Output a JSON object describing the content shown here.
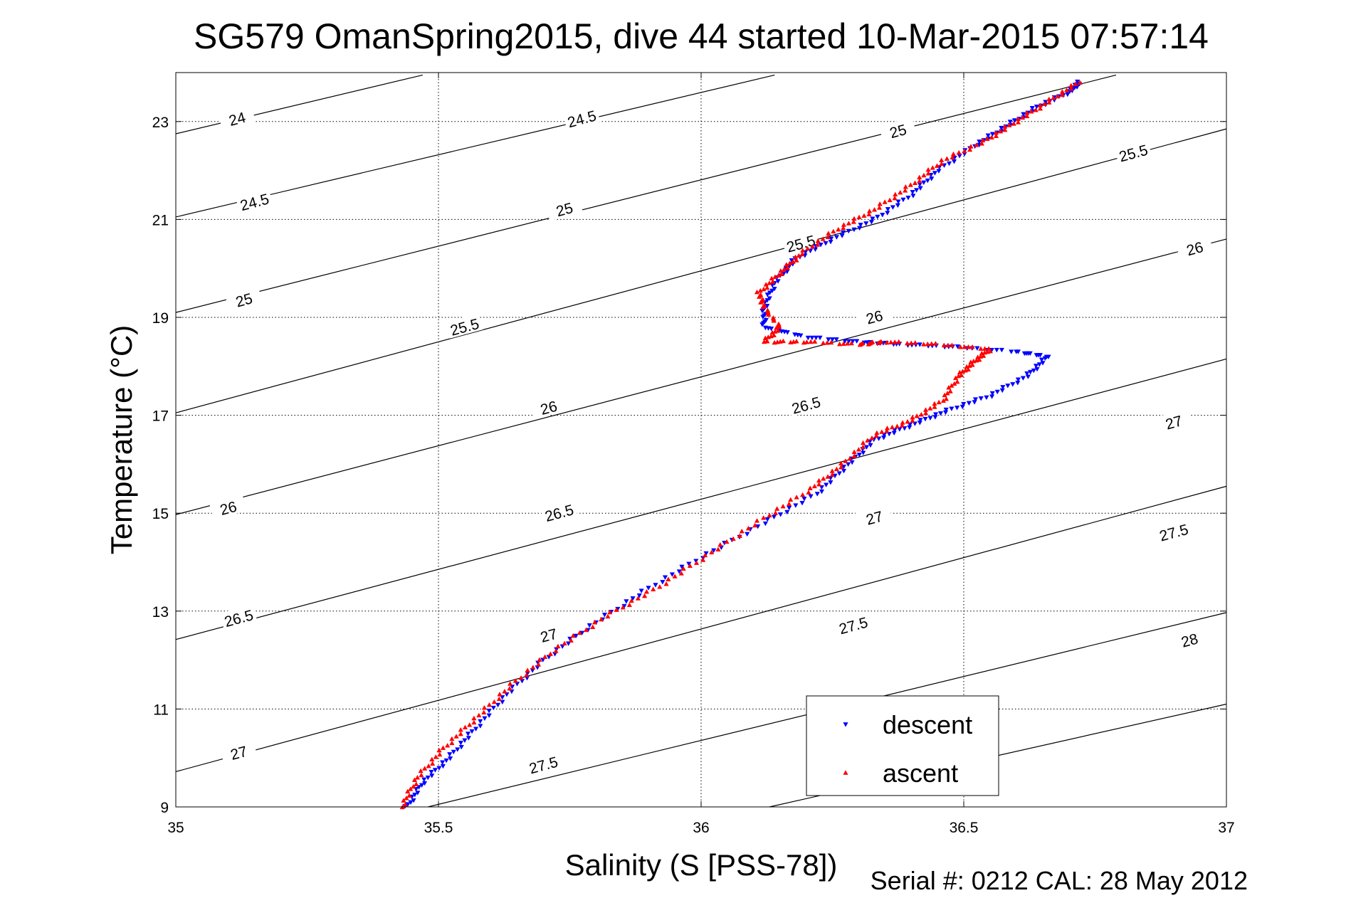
{
  "chart_data": {
    "type": "scatter",
    "title": "SG579 OmanSpring2015, dive 44 started 10-Mar-2015 07:57:14",
    "xlabel": "Salinity (S [PSS-78])",
    "ylabel": "Temperature (°C)",
    "footer": "Serial #: 0212  CAL: 28 May 2012",
    "xlim": [
      35,
      37
    ],
    "ylim": [
      9,
      24
    ],
    "x_ticks": [
      35,
      35.5,
      36,
      36.5,
      37
    ],
    "x_tick_labels": [
      "35",
      "35.5",
      "36",
      "36.5",
      "37"
    ],
    "y_ticks": [
      9,
      11,
      13,
      15,
      17,
      19,
      21,
      23
    ],
    "y_tick_labels": [
      "9",
      "11",
      "13",
      "15",
      "17",
      "19",
      "21",
      "23"
    ],
    "grid": true,
    "legend_position": "bottom-right",
    "series": [
      {
        "name": "descent",
        "color": "#0000ff",
        "marker": "triangle-down",
        "points": [
          [
            35.44,
            9.0
          ],
          [
            35.47,
            9.5
          ],
          [
            35.52,
            10.0
          ],
          [
            35.57,
            10.6
          ],
          [
            35.63,
            11.3
          ],
          [
            35.7,
            12.0
          ],
          [
            35.79,
            12.7
          ],
          [
            35.89,
            13.4
          ],
          [
            36.0,
            14.1
          ],
          [
            36.12,
            14.8
          ],
          [
            36.22,
            15.4
          ],
          [
            36.28,
            16.0
          ],
          [
            36.33,
            16.5
          ],
          [
            36.4,
            16.8
          ],
          [
            36.47,
            17.1
          ],
          [
            36.55,
            17.4
          ],
          [
            36.62,
            17.8
          ],
          [
            36.66,
            18.2
          ],
          [
            36.6,
            18.3
          ],
          [
            36.48,
            18.4
          ],
          [
            36.38,
            18.45
          ],
          [
            36.3,
            18.5
          ],
          [
            36.2,
            18.6
          ],
          [
            36.12,
            18.8
          ],
          [
            36.12,
            19.2
          ],
          [
            36.14,
            19.7
          ],
          [
            36.18,
            20.2
          ],
          [
            36.25,
            20.6
          ],
          [
            36.33,
            21.0
          ],
          [
            36.4,
            21.5
          ],
          [
            36.45,
            22.0
          ],
          [
            36.52,
            22.5
          ],
          [
            36.58,
            22.9
          ],
          [
            36.64,
            23.3
          ],
          [
            36.7,
            23.6
          ],
          [
            36.72,
            23.8
          ]
        ]
      },
      {
        "name": "ascent",
        "color": "#ff0000",
        "marker": "triangle-up",
        "points": [
          [
            35.43,
            9.0
          ],
          [
            35.46,
            9.6
          ],
          [
            35.51,
            10.2
          ],
          [
            35.57,
            10.8
          ],
          [
            35.64,
            11.5
          ],
          [
            35.72,
            12.2
          ],
          [
            35.82,
            12.9
          ],
          [
            35.92,
            13.5
          ],
          [
            36.02,
            14.2
          ],
          [
            36.12,
            14.9
          ],
          [
            36.21,
            15.5
          ],
          [
            36.27,
            16.0
          ],
          [
            36.33,
            16.6
          ],
          [
            36.4,
            16.9
          ],
          [
            36.46,
            17.3
          ],
          [
            36.49,
            17.8
          ],
          [
            36.52,
            18.1
          ],
          [
            36.55,
            18.35
          ],
          [
            36.45,
            18.45
          ],
          [
            36.35,
            18.5
          ],
          [
            36.3,
            18.45
          ],
          [
            36.2,
            18.5
          ],
          [
            36.12,
            18.5
          ],
          [
            36.15,
            18.8
          ],
          [
            36.12,
            19.2
          ],
          [
            36.11,
            19.5
          ],
          [
            36.15,
            19.9
          ],
          [
            36.19,
            20.3
          ],
          [
            36.26,
            20.8
          ],
          [
            36.33,
            21.2
          ],
          [
            36.4,
            21.7
          ],
          [
            36.46,
            22.2
          ],
          [
            36.54,
            22.6
          ],
          [
            36.6,
            23.0
          ],
          [
            36.66,
            23.4
          ],
          [
            36.72,
            23.8
          ]
        ]
      }
    ],
    "isopycnals": [
      {
        "label": "24",
        "points": [
          [
            35.0,
            22.75
          ],
          [
            35.47,
            23.95
          ]
        ],
        "label_at": [
          35.117,
          23.05
        ]
      },
      {
        "label": "24.5",
        "points": [
          [
            35.0,
            21.05
          ],
          [
            36.14,
            23.95
          ]
        ],
        "label_at": [
          35.773,
          23.05
        ]
      },
      {
        "label": "24.5",
        "points": [
          [
            35.0,
            20.99
          ],
          [
            35.0,
            20.99
          ]
        ],
        "label_at": [
          35.0,
          20.99
        ],
        "skip_line": true
      },
      {
        "label": "25",
        "points": [
          [
            35.0,
            19.1
          ],
          [
            36.79,
            23.95
          ]
        ],
        "label_at": [
          36.375,
          22.8
        ]
      },
      {
        "label": "25.5",
        "points": [
          [
            35.0,
            17.05
          ],
          [
            37.0,
            22.85
          ]
        ],
        "label_at": [
          36.823,
          22.35
        ]
      },
      {
        "label": "26",
        "points": [
          [
            35.0,
            14.97
          ],
          [
            37.0,
            20.6
          ]
        ],
        "label_at": [
          36.94,
          20.4
        ]
      },
      {
        "label": "26.5",
        "points": [
          [
            35.0,
            12.42
          ],
          [
            37.0,
            18.15
          ]
        ],
        "label_at": [
          36.2,
          17.2
        ]
      },
      {
        "label": "27",
        "points": [
          [
            35.0,
            9.72
          ],
          [
            37.0,
            15.55
          ]
        ],
        "label_at": [
          36.9,
          16.85
        ]
      },
      {
        "label": "27.5",
        "points": [
          [
            35.48,
            9.0
          ],
          [
            37.0,
            12.97
          ]
        ],
        "label_at": [
          36.9,
          14.6
        ]
      },
      {
        "label": "28",
        "points": [
          [
            36.13,
            9.0
          ],
          [
            37.0,
            11.1
          ]
        ],
        "label_at": [
          36.93,
          12.4
        ]
      }
    ],
    "contour_labels": [
      {
        "label": "24.5",
        "at": [
          35.15,
          21.35
        ]
      },
      {
        "label": "25",
        "at": [
          35.74,
          21.2
        ]
      },
      {
        "label": "25",
        "at": [
          35.13,
          19.35
        ]
      },
      {
        "label": "25.5",
        "at": [
          36.19,
          20.5
        ]
      },
      {
        "label": "25.5",
        "at": [
          35.55,
          18.8
        ]
      },
      {
        "label": "26",
        "at": [
          36.33,
          19.0
        ]
      },
      {
        "label": "26",
        "at": [
          35.71,
          17.15
        ]
      },
      {
        "label": "26",
        "at": [
          35.1,
          15.1
        ]
      },
      {
        "label": "26.5",
        "at": [
          35.73,
          15.0
        ]
      },
      {
        "label": "26.5",
        "at": [
          35.12,
          12.85
        ]
      },
      {
        "label": "27",
        "at": [
          36.33,
          14.9
        ]
      },
      {
        "label": "27",
        "at": [
          35.71,
          12.5
        ]
      },
      {
        "label": "27",
        "at": [
          35.12,
          10.1
        ]
      },
      {
        "label": "27.5",
        "at": [
          36.29,
          12.7
        ]
      },
      {
        "label": "27.5",
        "at": [
          35.7,
          9.85
        ]
      }
    ]
  }
}
